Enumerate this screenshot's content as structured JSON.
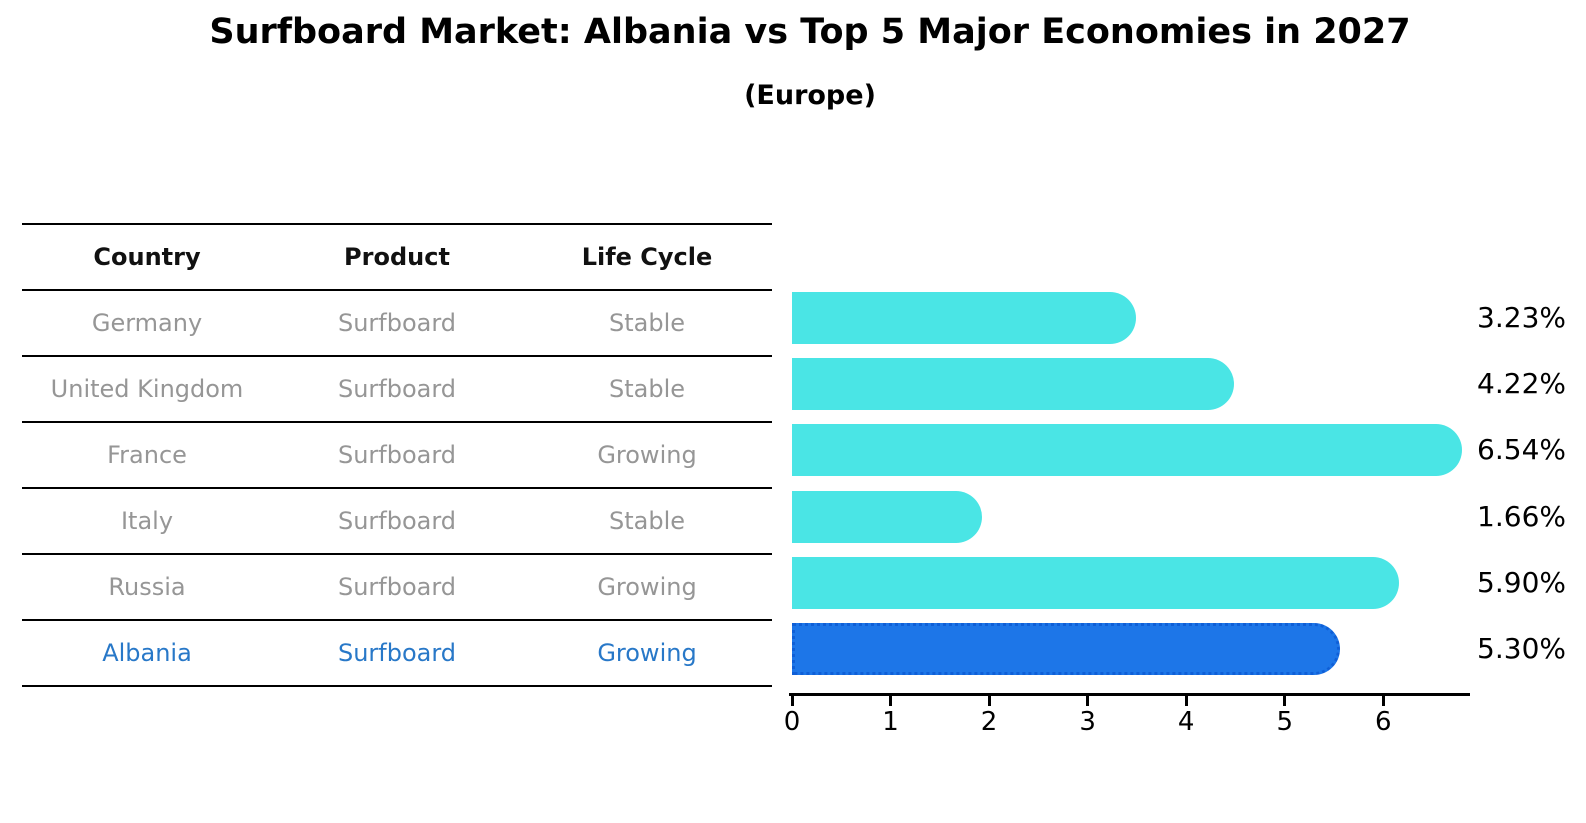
{
  "title": "Surfboard Market: Albania vs Top 5 Major Economies in 2027",
  "subtitle": "(Europe)",
  "table": {
    "headers": [
      "Country",
      "Product",
      "Life Cycle"
    ],
    "rows": [
      {
        "country": "Germany",
        "product": "Surfboard",
        "life_cycle": "Stable",
        "highlight": false
      },
      {
        "country": "United Kingdom",
        "product": "Surfboard",
        "life_cycle": "Stable",
        "highlight": false
      },
      {
        "country": "France",
        "product": "Surfboard",
        "life_cycle": "Growing",
        "highlight": false
      },
      {
        "country": "Italy",
        "product": "Surfboard",
        "life_cycle": "Stable",
        "highlight": false
      },
      {
        "country": "Russia",
        "product": "Surfboard",
        "life_cycle": "Growing",
        "highlight": false
      },
      {
        "country": "Albania",
        "product": "Surfboard",
        "life_cycle": "Growing",
        "highlight": true
      }
    ]
  },
  "chart_data": {
    "type": "bar",
    "orientation": "horizontal",
    "title": "Surfboard Market: Albania vs Top 5 Major Economies in 2027",
    "subtitle": "(Europe)",
    "categories": [
      "Germany",
      "United Kingdom",
      "France",
      "Italy",
      "Russia",
      "Albania"
    ],
    "values": [
      3.23,
      4.22,
      6.54,
      1.66,
      5.9,
      5.3
    ],
    "value_labels": [
      "3.23%",
      "4.22%",
      "6.54%",
      "1.66%",
      "5.90%",
      "5.30%"
    ],
    "x_ticks": [
      "0",
      "1",
      "2",
      "3",
      "4",
      "5",
      "6"
    ],
    "xlim": [
      0,
      6.88
    ],
    "grid": false,
    "legend": "none",
    "bar_color": "#4ae5e5",
    "highlight_index": 5,
    "highlight_color": "#1d76e8",
    "highlight_border_color": "#0f5fd7",
    "highlight_text_color": "#2878c8",
    "row_text_color": "#969696"
  }
}
